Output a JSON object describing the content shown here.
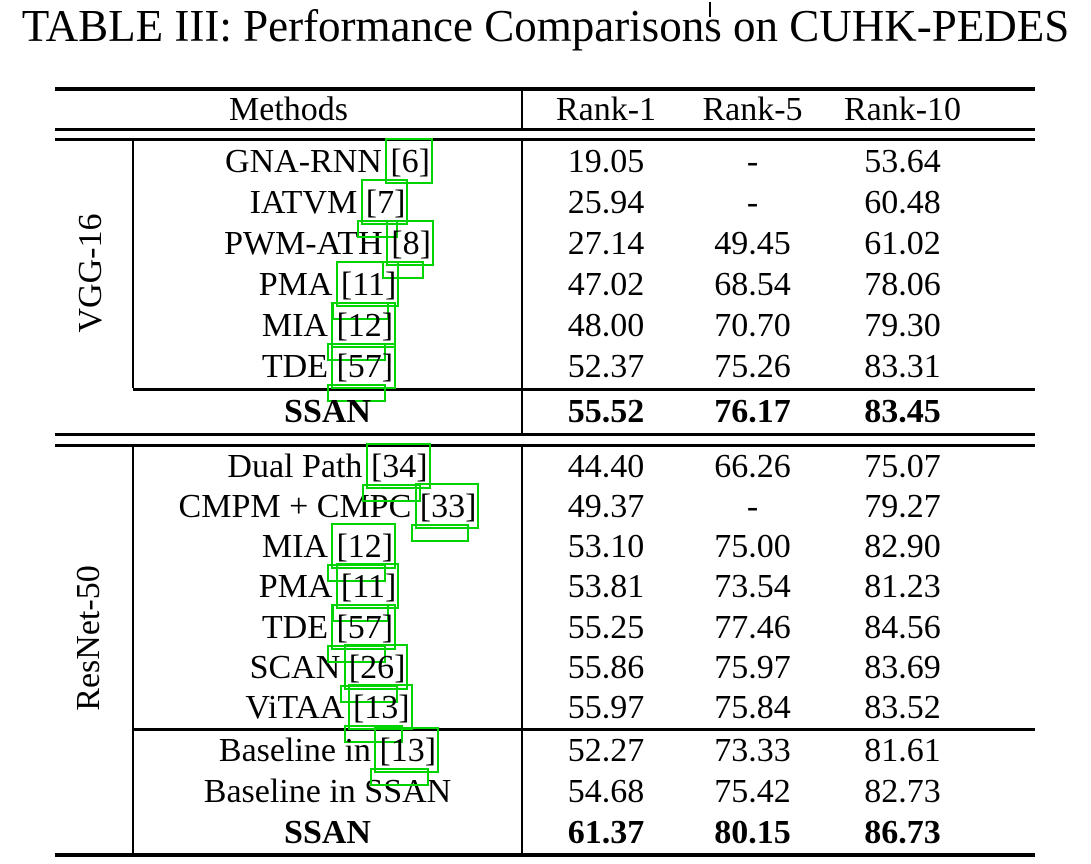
{
  "title": "TABLE III: Performance Comparisons on CUHK-PEDES",
  "colors": {
    "link_box": "#00d400",
    "text": "#000000",
    "background": "#ffffff"
  },
  "table": {
    "columns": [
      "Methods",
      "Rank-1",
      "Rank-5",
      "Rank-10"
    ],
    "groups": [
      {
        "label": "VGG-16",
        "rows": [
          {
            "method": "GNA-RNN",
            "citation": "[6]",
            "rank1": "19.05",
            "rank5": "-",
            "rank10": "53.64",
            "bold": false,
            "ghost": false
          },
          {
            "method": "IATVM",
            "citation": "[7]",
            "rank1": "25.94",
            "rank5": "-",
            "rank10": "60.48",
            "bold": false,
            "ghost": true
          },
          {
            "method": "PWM-ATH",
            "citation": "[8]",
            "rank1": "27.14",
            "rank5": "49.45",
            "rank10": "61.02",
            "bold": false,
            "ghost": true
          },
          {
            "method": "PMA",
            "citation": "[11]",
            "rank1": "47.02",
            "rank5": "68.54",
            "rank10": "78.06",
            "bold": false,
            "ghost": true
          },
          {
            "method": "MIA",
            "citation": "[12]",
            "rank1": "48.00",
            "rank5": "70.70",
            "rank10": "79.30",
            "bold": false,
            "ghost": true
          },
          {
            "method": "TDE",
            "citation": "[57]",
            "rank1": "52.37",
            "rank5": "75.26",
            "rank10": "83.31",
            "bold": false,
            "ghost": true
          }
        ],
        "summary_rows": [
          {
            "method": "SSAN",
            "citation": null,
            "rank1": "55.52",
            "rank5": "76.17",
            "rank10": "83.45",
            "bold": true,
            "ghost": false
          }
        ]
      },
      {
        "label": "ResNet-50",
        "rows": [
          {
            "method": "Dual Path",
            "citation": "[34]",
            "rank1": "44.40",
            "rank5": "66.26",
            "rank10": "75.07",
            "bold": false,
            "ghost": true
          },
          {
            "method": "CMPM + CMPC",
            "citation": "[33]",
            "rank1": "49.37",
            "rank5": "-",
            "rank10": "79.27",
            "bold": false,
            "ghost": true
          },
          {
            "method": "MIA",
            "citation": "[12]",
            "rank1": "53.10",
            "rank5": "75.00",
            "rank10": "82.90",
            "bold": false,
            "ghost": true
          },
          {
            "method": "PMA",
            "citation": "[11]",
            "rank1": "53.81",
            "rank5": "73.54",
            "rank10": "81.23",
            "bold": false,
            "ghost": true
          },
          {
            "method": "TDE",
            "citation": "[57]",
            "rank1": "55.25",
            "rank5": "77.46",
            "rank10": "84.56",
            "bold": false,
            "ghost": true
          },
          {
            "method": "SCAN",
            "citation": "[26]",
            "rank1": "55.86",
            "rank5": "75.97",
            "rank10": "83.69",
            "bold": false,
            "ghost": true
          },
          {
            "method": "ViTAA",
            "citation": "[13]",
            "rank1": "55.97",
            "rank5": "75.84",
            "rank10": "83.52",
            "bold": false,
            "ghost": true
          }
        ],
        "summary_rows": [
          {
            "method": "Baseline in",
            "citation": "[13]",
            "rank1": "52.27",
            "rank5": "73.33",
            "rank10": "81.61",
            "bold": false,
            "ghost": true
          },
          {
            "method": "Baseline in SSAN",
            "citation": null,
            "rank1": "54.68",
            "rank5": "75.42",
            "rank10": "82.73",
            "bold": false,
            "ghost": false
          },
          {
            "method": "SSAN",
            "citation": null,
            "rank1": "61.37",
            "rank5": "80.15",
            "rank10": "86.73",
            "bold": true,
            "ghost": false
          }
        ]
      }
    ]
  }
}
